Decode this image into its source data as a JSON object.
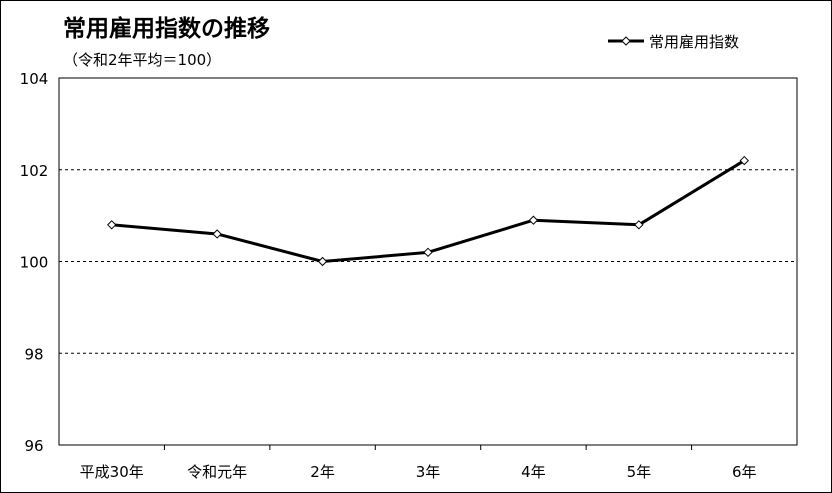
{
  "chart_data": {
    "type": "line",
    "title": "常用雇用指数の推移",
    "subtitle": "（令和2年平均＝100）",
    "categories": [
      "平成30年",
      "令和元年",
      "2年",
      "3年",
      "4年",
      "5年",
      "6年"
    ],
    "series": [
      {
        "name": "常用雇用指数",
        "values": [
          100.8,
          100.6,
          100.0,
          100.2,
          100.9,
          100.8,
          102.2
        ],
        "color": "#000000",
        "marker": "diamond"
      }
    ],
    "ylim": [
      96,
      104
    ],
    "yticks": [
      "96",
      "98",
      "100",
      "102",
      "104"
    ],
    "grid": "horizontal-dashed",
    "legend": "top-right"
  }
}
